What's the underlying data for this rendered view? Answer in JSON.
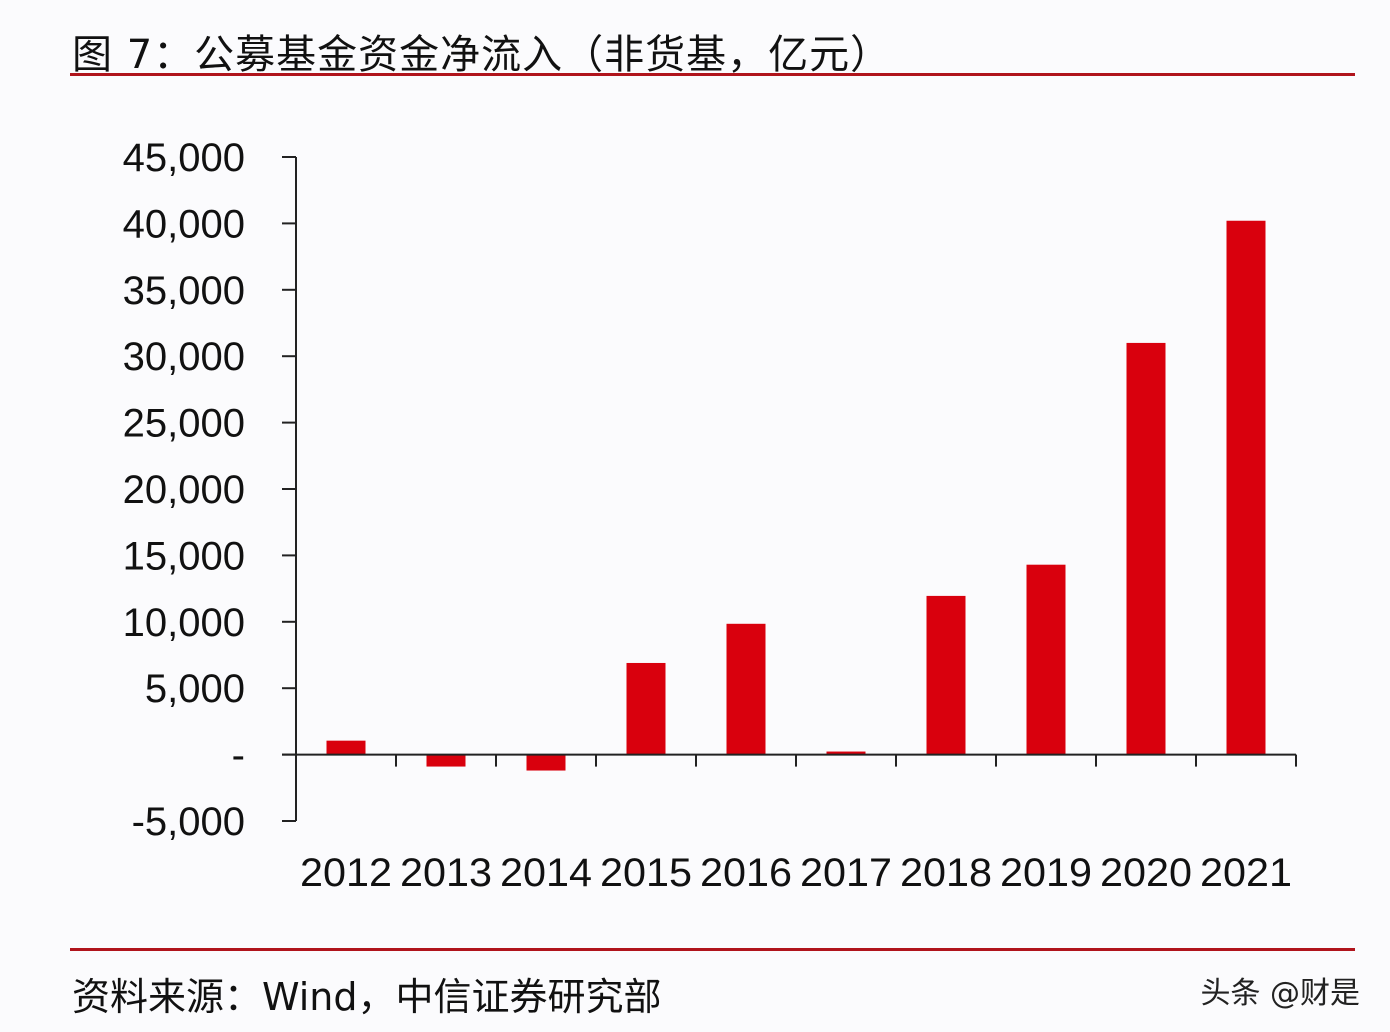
{
  "header": {
    "title": "图 7：公募基金资金净流入（非货基，亿元）"
  },
  "footer": {
    "source": "资料来源：Wind，中信证券研究部",
    "watermark": "头条 @财是"
  },
  "colors": {
    "bar": "#d9000d",
    "rule": "#b0141c",
    "axis": "#222222"
  },
  "chart_data": {
    "type": "bar",
    "title": "图 7：公募基金资金净流入（非货基，亿元）",
    "xlabel": "",
    "ylabel": "",
    "categories": [
      "2012",
      "2013",
      "2014",
      "2015",
      "2016",
      "2017",
      "2018",
      "2019",
      "2020",
      "2021"
    ],
    "series": [
      {
        "name": "公募基金资金净流入（非货基，亿元）",
        "values": [
          1050,
          -900,
          -1200,
          6900,
          9850,
          230,
          11950,
          14300,
          31000,
          40200
        ]
      }
    ],
    "ylim": [
      -5000,
      45000
    ],
    "yticks": [
      -5000,
      0,
      5000,
      10000,
      15000,
      20000,
      25000,
      30000,
      35000,
      40000,
      45000
    ],
    "ytick_labels": [
      "-5,000",
      "-",
      "5,000",
      "10,000",
      "15,000",
      "20,000",
      "25,000",
      "30,000",
      "35,000",
      "40,000",
      "45,000"
    ],
    "grid": false,
    "legend": "none",
    "source": "资料来源：Wind，中信证券研究部"
  }
}
